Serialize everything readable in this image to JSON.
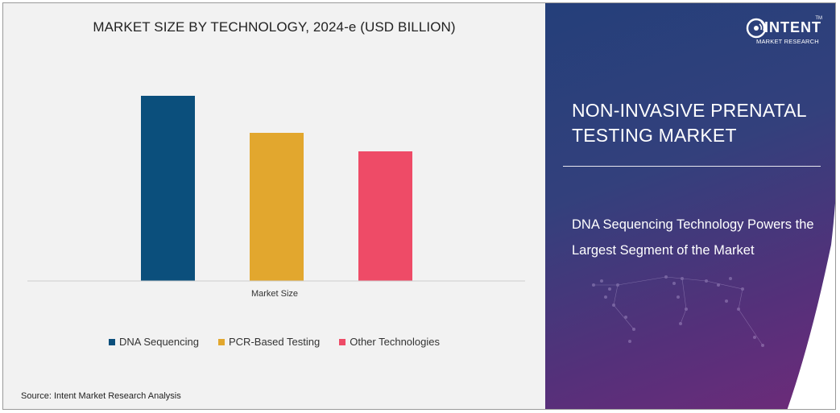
{
  "chart_data": {
    "type": "bar",
    "title": "MARKET SIZE BY TECHNOLOGY, 2024-e (USD BILLION)",
    "categories": [
      "Market Size"
    ],
    "xlabel": "Market Size",
    "ylabel": "",
    "ylim": [
      0,
      10
    ],
    "grid": false,
    "legend_position": "bottom",
    "series": [
      {
        "name": "DNA Sequencing",
        "values": [
          10
        ],
        "color": "#0b4f7c"
      },
      {
        "name": "PCR-Based Testing",
        "values": [
          8
        ],
        "color": "#e2a72e"
      },
      {
        "name": "Other Technologies",
        "values": [
          7
        ],
        "color": "#ee4b67"
      }
    ]
  },
  "source": "Source:  Intent Market Research Analysis",
  "brand": {
    "name": "INTENT",
    "tagline": "MARKET RESEARCH",
    "trademark": "TM"
  },
  "report": {
    "title": "NON-INVASIVE PRENATAL TESTING MARKET",
    "tagline": "DNA Sequencing Technology Powers the Largest Segment of the Market"
  },
  "icons": {
    "logo": "signal-logo-icon",
    "background": "world-map-icon"
  }
}
